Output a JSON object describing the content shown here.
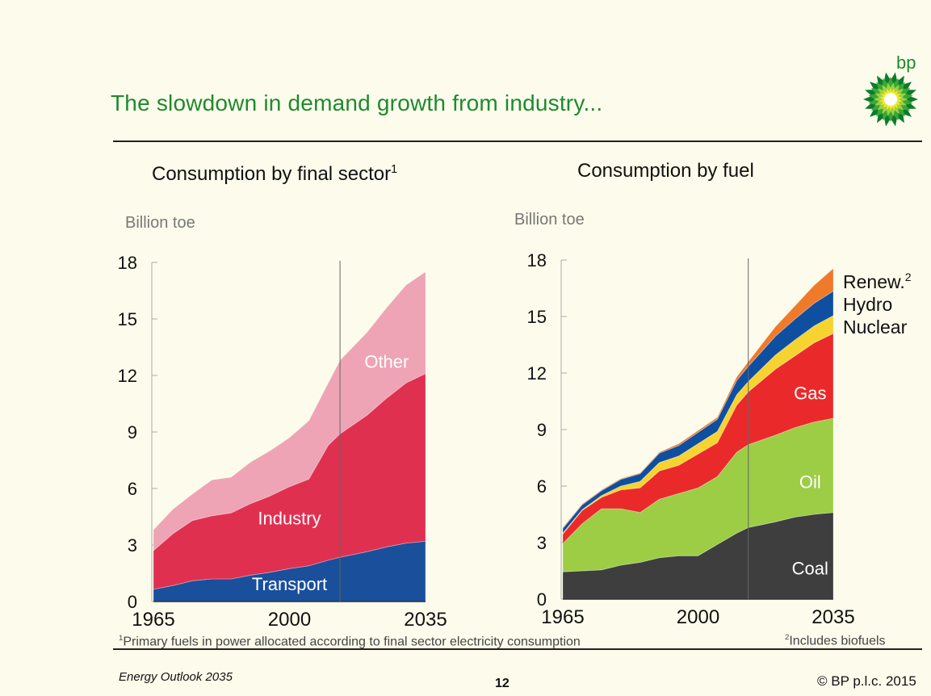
{
  "header": {
    "title": "The slowdown in demand growth from industry...",
    "logo_text": "bp",
    "logo_icon": "bp-helios-icon"
  },
  "colors": {
    "title_green": "#1e8a2e",
    "transport": "#1a4f9c",
    "industry": "#e03050",
    "other": "#eea4b4",
    "coal": "#3e3e3e",
    "oil": "#9ccd45",
    "gas": "#ea2a2a",
    "nuclear": "#f7d330",
    "hydro": "#0f4fa0",
    "renew": "#ef7a2a"
  },
  "chart_data": [
    {
      "type": "area",
      "stacked": true,
      "title": "Consumption by final sector",
      "title_footnote": "1",
      "ylabel": "Billion toe",
      "xlabel": "",
      "x": [
        1965,
        1970,
        1975,
        1980,
        1985,
        1990,
        1995,
        2000,
        2005,
        2010,
        2013,
        2020,
        2025,
        2030,
        2035
      ],
      "ylim": [
        0,
        18
      ],
      "yticks": [
        0,
        3,
        6,
        9,
        12,
        15,
        18
      ],
      "xticks": [
        "1965",
        "2000",
        "2035"
      ],
      "xlim": [
        1965,
        2035
      ],
      "projection_start": 2013,
      "series": [
        {
          "name": "Transport",
          "values": [
            0.65,
            0.85,
            1.1,
            1.2,
            1.2,
            1.4,
            1.55,
            1.75,
            1.9,
            2.2,
            2.35,
            2.65,
            2.9,
            3.1,
            3.2
          ]
        },
        {
          "name": "Industry",
          "values": [
            2.05,
            2.75,
            3.2,
            3.35,
            3.5,
            3.8,
            4.05,
            4.35,
            4.6,
            6.1,
            6.55,
            7.25,
            7.9,
            8.5,
            8.9
          ]
        },
        {
          "name": "Other",
          "values": [
            1.1,
            1.3,
            1.4,
            1.9,
            1.9,
            2.2,
            2.4,
            2.6,
            3.1,
            3.3,
            3.9,
            4.4,
            4.8,
            5.2,
            5.4
          ]
        }
      ],
      "labels": [
        "Transport",
        "Industry",
        "Other"
      ]
    },
    {
      "type": "area",
      "stacked": true,
      "title": "Consumption by fuel",
      "ylabel": "Billion toe",
      "xlabel": "",
      "x": [
        1965,
        1970,
        1975,
        1980,
        1985,
        1990,
        1995,
        2000,
        2005,
        2010,
        2013,
        2020,
        2025,
        2030,
        2035
      ],
      "ylim": [
        0,
        18
      ],
      "yticks": [
        0,
        3,
        6,
        9,
        12,
        15,
        18
      ],
      "xticks": [
        "1965",
        "2000",
        "2035"
      ],
      "xlim": [
        1965,
        2035
      ],
      "projection_start": 2013,
      "series": [
        {
          "name": "Coal",
          "values": [
            1.45,
            1.5,
            1.55,
            1.8,
            1.95,
            2.2,
            2.3,
            2.3,
            2.9,
            3.5,
            3.8,
            4.1,
            4.35,
            4.5,
            4.6
          ]
        },
        {
          "name": "Oil",
          "values": [
            1.5,
            2.5,
            3.25,
            3.0,
            2.65,
            3.1,
            3.3,
            3.6,
            3.6,
            4.3,
            4.4,
            4.6,
            4.75,
            4.9,
            5.0
          ]
        },
        {
          "name": "Gas",
          "values": [
            0.5,
            0.7,
            0.6,
            1.0,
            1.3,
            1.5,
            1.5,
            1.8,
            1.8,
            2.5,
            2.8,
            3.5,
            3.8,
            4.2,
            4.5
          ]
        },
        {
          "name": "Nuclear",
          "values": [
            0.05,
            0.05,
            0.1,
            0.2,
            0.35,
            0.45,
            0.5,
            0.55,
            0.6,
            0.55,
            0.55,
            0.75,
            0.85,
            0.9,
            0.95
          ]
        },
        {
          "name": "Hydro",
          "values": [
            0.25,
            0.25,
            0.25,
            0.35,
            0.4,
            0.5,
            0.55,
            0.6,
            0.65,
            0.75,
            0.8,
            1.0,
            1.1,
            1.2,
            1.3
          ]
        },
        {
          "name": "Renew.",
          "values": [
            0.05,
            0.05,
            0.05,
            0.05,
            0.05,
            0.05,
            0.1,
            0.1,
            0.1,
            0.2,
            0.25,
            0.5,
            0.7,
            0.95,
            1.2
          ]
        }
      ],
      "inside_labels": [
        "Coal",
        "Oil",
        "Gas"
      ],
      "legend": [
        "Renew.",
        "Hydro",
        "Nuclear"
      ],
      "legend_footnote": "2",
      "legend_position": "right"
    }
  ],
  "footnotes": {
    "left": "Primary fuels in power allocated according to final sector electricity consumption",
    "left_marker": "1",
    "right": "Includes biofuels",
    "right_marker": "2"
  },
  "footer": {
    "publication": "Energy Outlook 2035",
    "page": "12",
    "copyright": "© BP p.l.c. 2015"
  }
}
